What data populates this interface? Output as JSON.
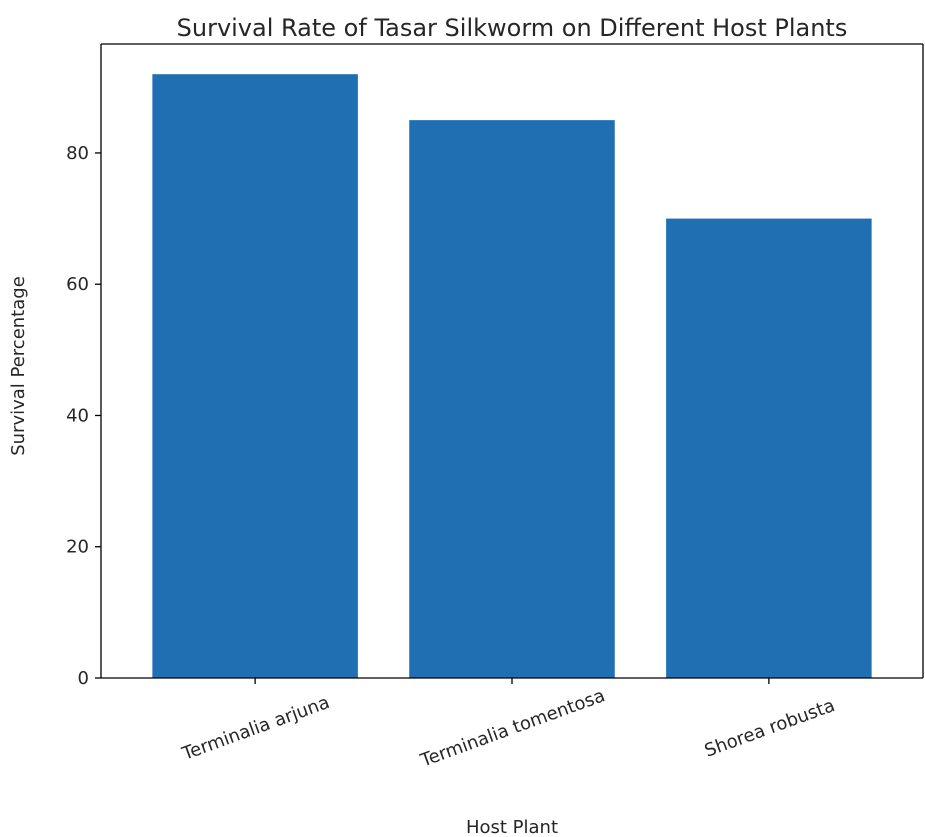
{
  "chart_data": {
    "type": "bar",
    "title": "Survival Rate of Tasar Silkworm on Different Host Plants",
    "xlabel": "Host Plant",
    "ylabel": "Survival Percentage",
    "categories": [
      "Terminalia arjuna",
      "Terminalia tomentosa",
      "Shorea robusta"
    ],
    "values": [
      92,
      85,
      70
    ],
    "ylim": [
      0,
      96.6
    ],
    "yticks": [
      0,
      20,
      40,
      60,
      80
    ],
    "ytick_labels": [
      "0",
      "20",
      "40",
      "60",
      "80"
    ],
    "bar_color": "#1f6fb2",
    "grid": false,
    "legend": "none"
  }
}
